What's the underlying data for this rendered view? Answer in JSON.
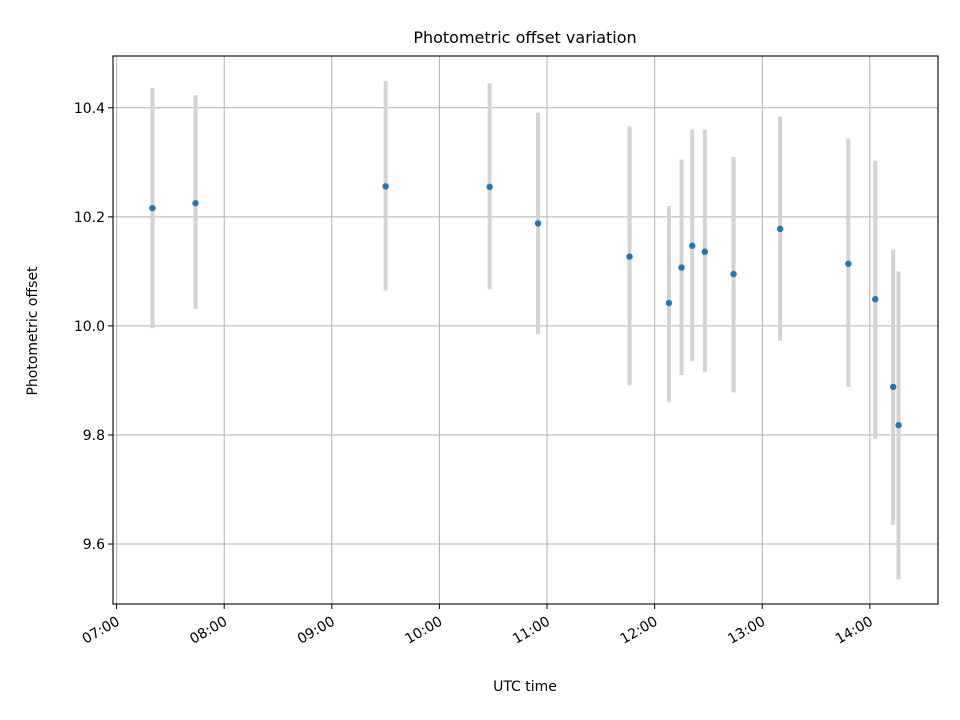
{
  "chart_data": {
    "type": "scatter",
    "title": "Photometric offset variation",
    "xlabel": "UTC time",
    "ylabel": "Photometric offset",
    "grid": true,
    "x_axis_kind": "time",
    "xlim": [
      "06:58",
      "14:38"
    ],
    "ylim": [
      9.49,
      10.495
    ],
    "x_ticks": [
      "07:00",
      "08:00",
      "09:00",
      "10:00",
      "11:00",
      "12:00",
      "13:00",
      "14:00"
    ],
    "y_ticks": [
      "9.6",
      "9.8",
      "10.0",
      "10.2",
      "10.4"
    ],
    "y_tick_values": [
      9.6,
      9.8,
      10.0,
      10.2,
      10.4
    ],
    "point_color": "#1f77b4",
    "errorbar_color": "#d3d3d3",
    "series": [
      {
        "points": [
          {
            "x": "07:20",
            "y": 10.216,
            "ylow": 9.996,
            "yhigh": 10.436
          },
          {
            "x": "07:44",
            "y": 10.225,
            "ylow": 10.031,
            "yhigh": 10.423
          },
          {
            "x": "09:30",
            "y": 10.256,
            "ylow": 10.065,
            "yhigh": 10.449
          },
          {
            "x": "10:28",
            "y": 10.255,
            "ylow": 10.067,
            "yhigh": 10.445
          },
          {
            "x": "10:55",
            "y": 10.188,
            "ylow": 9.985,
            "yhigh": 10.391
          },
          {
            "x": "11:46",
            "y": 10.127,
            "ylow": 9.891,
            "yhigh": 10.366
          },
          {
            "x": "12:08",
            "y": 10.042,
            "ylow": 9.86,
            "yhigh": 10.22
          },
          {
            "x": "12:15",
            "y": 10.107,
            "ylow": 9.91,
            "yhigh": 10.305
          },
          {
            "x": "12:21",
            "y": 10.147,
            "ylow": 9.935,
            "yhigh": 10.36
          },
          {
            "x": "12:28",
            "y": 10.136,
            "ylow": 9.915,
            "yhigh": 10.36
          },
          {
            "x": "12:44",
            "y": 10.095,
            "ylow": 9.878,
            "yhigh": 10.31
          },
          {
            "x": "13:10",
            "y": 10.178,
            "ylow": 9.973,
            "yhigh": 10.384
          },
          {
            "x": "13:48",
            "y": 10.114,
            "ylow": 9.888,
            "yhigh": 10.343
          },
          {
            "x": "14:03",
            "y": 10.049,
            "ylow": 9.793,
            "yhigh": 10.303
          },
          {
            "x": "14:13",
            "y": 9.888,
            "ylow": 9.635,
            "yhigh": 10.14
          },
          {
            "x": "14:16",
            "y": 9.818,
            "ylow": 9.535,
            "yhigh": 10.1
          }
        ]
      }
    ]
  }
}
